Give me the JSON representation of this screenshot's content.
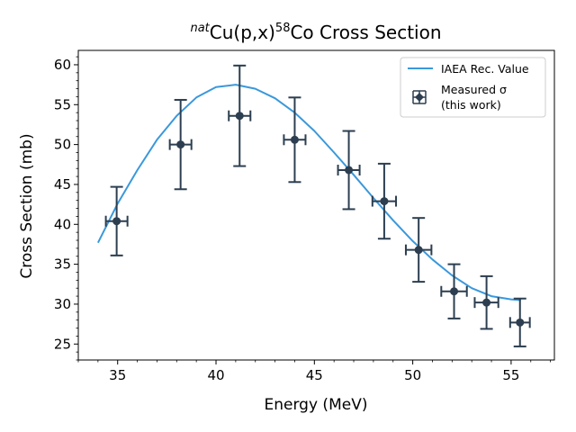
{
  "chart_data": {
    "type": "line",
    "title_prefix": "nat",
    "title_main": "Cu(p,x)",
    "title_sup": "58",
    "title_suffix": "Co Cross Section",
    "xlabel": "Energy (MeV)",
    "ylabel": "Cross Section (mb)",
    "xlim": [
      33.0,
      57.2
    ],
    "ylim": [
      23.0,
      61.8
    ],
    "xticks": [
      35,
      40,
      45,
      50,
      55
    ],
    "yticks": [
      25,
      30,
      35,
      40,
      45,
      50,
      55,
      60
    ],
    "xminor": 1,
    "yminor": 1,
    "grid": false,
    "legend_position": "top-right",
    "colors": {
      "line": "#3a98db",
      "points": "#2c3e50"
    },
    "series": [
      {
        "name": "IAEA Rec. Value",
        "kind": "line",
        "x": [
          34.0,
          35.0,
          36.0,
          37.0,
          38.0,
          39.0,
          40.0,
          41.0,
          42.0,
          43.0,
          44.0,
          45.0,
          46.0,
          47.0,
          48.0,
          49.0,
          50.0,
          51.0,
          52.0,
          53.0,
          54.0,
          55.0,
          55.5
        ],
        "y": [
          37.7,
          42.6,
          46.8,
          50.6,
          53.6,
          55.9,
          57.2,
          57.5,
          57.0,
          55.8,
          54.0,
          51.7,
          49.0,
          46.2,
          43.3,
          40.5,
          37.9,
          35.6,
          33.6,
          32.0,
          31.0,
          30.6,
          30.5
        ]
      },
      {
        "name_line1": "Measured σ",
        "name_line2": "(this work)",
        "kind": "errorbar",
        "points": [
          {
            "x": 34.95,
            "y": 40.4,
            "xerr": 0.55,
            "yerr": 4.3
          },
          {
            "x": 38.2,
            "y": 50.0,
            "xerr": 0.55,
            "yerr": 5.6
          },
          {
            "x": 41.2,
            "y": 53.6,
            "xerr": 0.55,
            "yerr": 6.3
          },
          {
            "x": 44.0,
            "y": 50.6,
            "xerr": 0.55,
            "yerr": 5.3
          },
          {
            "x": 46.75,
            "y": 46.8,
            "xerr": 0.55,
            "yerr": 4.9
          },
          {
            "x": 48.55,
            "y": 42.9,
            "xerr": 0.6,
            "yerr": 4.7
          },
          {
            "x": 50.3,
            "y": 36.8,
            "xerr": 0.65,
            "yerr": 4.0
          },
          {
            "x": 52.1,
            "y": 31.6,
            "xerr": 0.65,
            "yerr": 3.4
          },
          {
            "x": 53.75,
            "y": 30.2,
            "xerr": 0.6,
            "yerr": 3.3
          },
          {
            "x": 55.45,
            "y": 27.7,
            "xerr": 0.5,
            "yerr": 3.0
          }
        ]
      }
    ]
  }
}
